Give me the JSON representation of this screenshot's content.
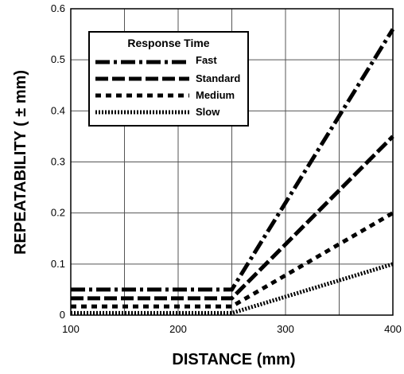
{
  "chart_data": {
    "type": "line",
    "xlabel": "DISTANCE (mm)",
    "ylabel": "REPEATABILITY ( ± mm)",
    "xlim": [
      100,
      400
    ],
    "ylim": [
      0,
      0.6
    ],
    "x_ticks": [
      "100",
      "200",
      "300",
      "400"
    ],
    "y_ticks": [
      "0",
      "0.1",
      "0.2",
      "0.3",
      "0.4",
      "0.5",
      "0.6"
    ],
    "grid": true,
    "legend": {
      "title": "Response Time",
      "placement": "top-left"
    },
    "series": [
      {
        "name": "Fast",
        "style": "dash-dot",
        "x": [
          100,
          250,
          400
        ],
        "y": [
          0.05,
          0.05,
          0.56
        ]
      },
      {
        "name": "Standard",
        "style": "dashed",
        "x": [
          100,
          250,
          400
        ],
        "y": [
          0.033,
          0.033,
          0.35
        ]
      },
      {
        "name": "Medium",
        "style": "short-dashed",
        "x": [
          100,
          250,
          400
        ],
        "y": [
          0.017,
          0.017,
          0.2
        ]
      },
      {
        "name": "Slow",
        "style": "dotted",
        "x": [
          100,
          250,
          400
        ],
        "y": [
          0.004,
          0.004,
          0.1
        ]
      }
    ]
  }
}
